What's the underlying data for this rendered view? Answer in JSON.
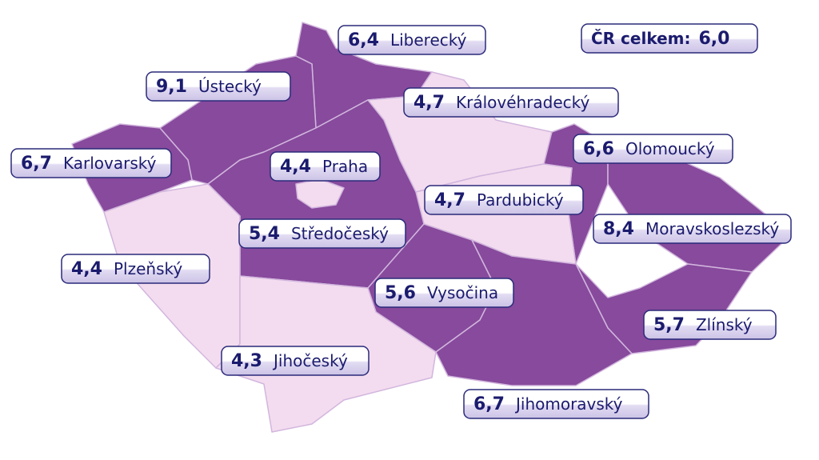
{
  "regions": [
    {
      "name": "Liberecký",
      "value": 6.4,
      "value_label": "6,4",
      "color": "#874a9c"
    },
    {
      "name": "Ústecký",
      "value": 9.1,
      "value_label": "9,1",
      "color": "#874a9c"
    },
    {
      "name": "Královéhradecký",
      "value": 4.7,
      "value_label": "4,7",
      "color": "#f3dcef"
    },
    {
      "name": "Karlovarský",
      "value": 6.7,
      "value_label": "6,7",
      "color": "#874a9c"
    },
    {
      "name": "Praha",
      "value": 4.4,
      "value_label": "4,4",
      "color": "#f3dcef"
    },
    {
      "name": "Olomoucký",
      "value": 6.6,
      "value_label": "6,6",
      "color": "#874a9c"
    },
    {
      "name": "Pardubický",
      "value": 4.7,
      "value_label": "4,7",
      "color": "#f3dcef"
    },
    {
      "name": "Moravskoslezský",
      "value": 8.4,
      "value_label": "8,4",
      "color": "#874a9c"
    },
    {
      "name": "Středočeský",
      "value": 5.4,
      "value_label": "5,4",
      "color": "#874a9c"
    },
    {
      "name": "Plzeňský",
      "value": 4.4,
      "value_label": "4,4",
      "color": "#f3dcef"
    },
    {
      "name": "Vysočina",
      "value": 5.6,
      "value_label": "5,6",
      "color": "#874a9c"
    },
    {
      "name": "Zlínský",
      "value": 5.7,
      "value_label": "5,7",
      "color": "#874a9c"
    },
    {
      "name": "Jihočeský",
      "value": 4.3,
      "value_label": "4,3",
      "color": "#f3dcef"
    },
    {
      "name": "Jihomoravský",
      "value": 6.7,
      "value_label": "6,7",
      "color": "#874a9c"
    }
  ],
  "total": {
    "label": "ČR celkem:",
    "value": 6.0,
    "value_label": "6,0"
  }
}
